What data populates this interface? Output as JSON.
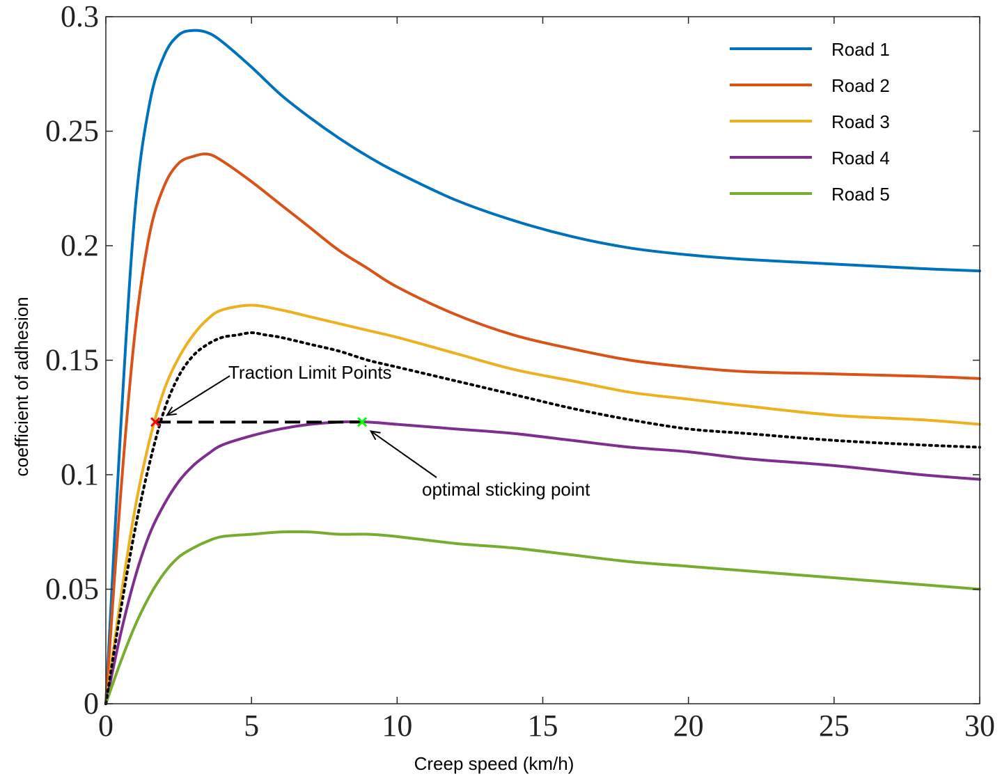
{
  "chart_data": {
    "type": "line",
    "title": "",
    "xlabel": "Creep speed (km/h)",
    "ylabel": "coefficient of adhesion",
    "xlim": [
      0,
      30
    ],
    "ylim": [
      0,
      0.3
    ],
    "xticks": [
      0,
      5,
      10,
      15,
      20,
      25,
      30
    ],
    "yticks": [
      0,
      0.05,
      0.1,
      0.15,
      0.2,
      0.25,
      0.3
    ],
    "xtick_labels": [
      "0",
      "5",
      "10",
      "15",
      "20",
      "25",
      "30"
    ],
    "ytick_labels": [
      "0",
      "0.05",
      "0.1",
      "0.15",
      "0.2",
      "0.25",
      "0.3"
    ],
    "grid": false,
    "legend_position": "top-right",
    "series": [
      {
        "name": "Road 1",
        "color": "#0072BD",
        "style": "solid",
        "x": [
          0,
          0.5,
          1,
          1.5,
          2,
          2.5,
          3,
          3.5,
          4,
          5,
          6,
          7,
          8,
          9,
          10,
          12,
          14,
          16,
          18,
          20,
          22,
          25,
          28,
          30
        ],
        "y": [
          0,
          0.118,
          0.215,
          0.262,
          0.283,
          0.292,
          0.294,
          0.293,
          0.289,
          0.278,
          0.266,
          0.256,
          0.247,
          0.239,
          0.232,
          0.22,
          0.211,
          0.204,
          0.199,
          0.196,
          0.194,
          0.192,
          0.19,
          0.189
        ]
      },
      {
        "name": "Road 2",
        "color": "#D95319",
        "style": "solid",
        "x": [
          0,
          0.5,
          1,
          1.5,
          2,
          2.5,
          3,
          3.5,
          4,
          5,
          6,
          7,
          8,
          9,
          10,
          12,
          14,
          16,
          18,
          20,
          22,
          25,
          28,
          30
        ],
        "y": [
          0,
          0.09,
          0.162,
          0.205,
          0.226,
          0.236,
          0.239,
          0.24,
          0.237,
          0.228,
          0.218,
          0.208,
          0.198,
          0.19,
          0.182,
          0.17,
          0.161,
          0.155,
          0.15,
          0.147,
          0.145,
          0.144,
          0.143,
          0.142
        ]
      },
      {
        "name": "Road 3",
        "color": "#EDB120",
        "style": "solid",
        "x": [
          0,
          0.5,
          1,
          1.5,
          2,
          2.5,
          3,
          3.5,
          4,
          5,
          6,
          7,
          8,
          9,
          10,
          12,
          14,
          16,
          18,
          20,
          22,
          25,
          28,
          30
        ],
        "y": [
          0,
          0.045,
          0.085,
          0.115,
          0.137,
          0.151,
          0.161,
          0.168,
          0.172,
          0.174,
          0.172,
          0.169,
          0.166,
          0.163,
          0.16,
          0.153,
          0.146,
          0.141,
          0.136,
          0.133,
          0.13,
          0.126,
          0.124,
          0.122
        ]
      },
      {
        "name": "Road 4",
        "color": "#7E2F8E",
        "style": "solid",
        "x": [
          0,
          0.5,
          1,
          1.5,
          2,
          2.5,
          3,
          3.5,
          4,
          5,
          6,
          7,
          8,
          9,
          10,
          12,
          14,
          16,
          18,
          20,
          22,
          25,
          28,
          30
        ],
        "y": [
          0,
          0.03,
          0.055,
          0.074,
          0.087,
          0.097,
          0.104,
          0.109,
          0.113,
          0.117,
          0.12,
          0.122,
          0.123,
          0.123,
          0.122,
          0.12,
          0.118,
          0.115,
          0.112,
          0.11,
          0.107,
          0.104,
          0.1,
          0.098
        ]
      },
      {
        "name": "Road 5",
        "color": "#77AC30",
        "style": "solid",
        "x": [
          0,
          0.5,
          1,
          1.5,
          2,
          2.5,
          3,
          3.5,
          4,
          5,
          6,
          7,
          8,
          9,
          10,
          12,
          14,
          16,
          18,
          20,
          22,
          25,
          28,
          30
        ],
        "y": [
          0,
          0.018,
          0.034,
          0.047,
          0.057,
          0.064,
          0.068,
          0.071,
          0.073,
          0.074,
          0.075,
          0.075,
          0.074,
          0.074,
          0.073,
          0.07,
          0.068,
          0.065,
          0.062,
          0.06,
          0.058,
          0.055,
          0.052,
          0.05
        ]
      }
    ],
    "limit_curve": {
      "name": "traction limit",
      "color": "#000000",
      "style": "dotted",
      "x": [
        0,
        0.5,
        1,
        1.5,
        2,
        2.5,
        3,
        3.5,
        4,
        4.5,
        5,
        5.5,
        6,
        7,
        8,
        9,
        10,
        12,
        14,
        16,
        18,
        20,
        22,
        25,
        28,
        30
      ],
      "y": [
        0,
        0.04,
        0.076,
        0.105,
        0.128,
        0.143,
        0.152,
        0.157,
        0.16,
        0.161,
        0.162,
        0.161,
        0.16,
        0.157,
        0.154,
        0.15,
        0.147,
        0.141,
        0.135,
        0.129,
        0.124,
        0.12,
        0.118,
        0.115,
        0.113,
        0.112
      ]
    },
    "reference_line": {
      "x": [
        1.7,
        8.8
      ],
      "y": [
        0.123,
        0.123
      ],
      "color": "#000000",
      "style": "dashed"
    },
    "markers": [
      {
        "name": "traction limit point",
        "x": 1.7,
        "y": 0.123,
        "color": "#FF0000",
        "symbol": "x"
      },
      {
        "name": "optimal sticking point",
        "x": 8.8,
        "y": 0.123,
        "color": "#00FF00",
        "symbol": "x"
      }
    ],
    "annotations": [
      {
        "text": "Traction Limit Points",
        "x": 4.2,
        "y": 0.145,
        "arrow_to": [
          2.1,
          0.126
        ]
      },
      {
        "text": "optimal sticking point",
        "x": 10.8,
        "y": 0.096,
        "arrow_to": [
          9.1,
          0.119
        ]
      }
    ]
  }
}
